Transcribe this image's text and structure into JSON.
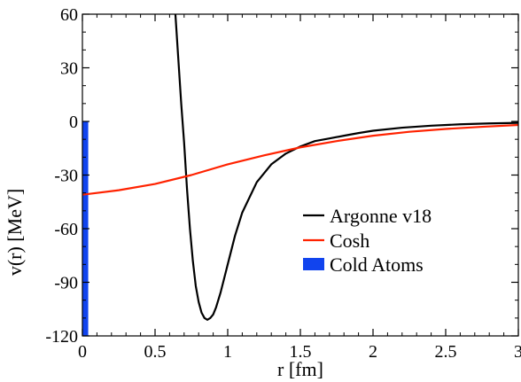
{
  "chart_data": {
    "type": "line",
    "xlabel": "r  [fm]",
    "ylabel": "v(r)  [MeV]",
    "xlim": [
      0,
      3
    ],
    "ylim": [
      -120,
      60
    ],
    "x_ticks": [
      0,
      0.5,
      1,
      1.5,
      2,
      2.5,
      3
    ],
    "x_tick_labels": [
      "0",
      "0.5",
      "1",
      "1.5",
      "2",
      "2.5",
      "3"
    ],
    "y_ticks": [
      -120,
      -90,
      -60,
      -30,
      0,
      30,
      60
    ],
    "y_tick_labels": [
      "-120",
      "-90",
      "-60",
      "-30",
      "0",
      "30",
      "60"
    ],
    "grid": false,
    "legend_position": "center-right",
    "series": [
      {
        "name": "Argonne v18",
        "color": "#000000",
        "x": [
          0.64,
          0.66,
          0.68,
          0.7,
          0.72,
          0.74,
          0.76,
          0.78,
          0.8,
          0.82,
          0.84,
          0.86,
          0.88,
          0.9,
          0.92,
          0.95,
          1.0,
          1.05,
          1.1,
          1.2,
          1.3,
          1.4,
          1.5,
          1.6,
          1.7,
          1.8,
          1.9,
          2.0,
          2.2,
          2.4,
          2.6,
          2.8,
          3.0
        ],
        "y": [
          60,
          35,
          10,
          -12,
          -38,
          -60,
          -78,
          -92,
          -101,
          -107,
          -110,
          -111,
          -110,
          -108,
          -104,
          -96,
          -80,
          -64,
          -51,
          -34,
          -24,
          -18,
          -14,
          -11,
          -9.5,
          -8,
          -6.5,
          -5.2,
          -3.5,
          -2.4,
          -1.6,
          -1.1,
          -0.8
        ]
      },
      {
        "name": "Cosh",
        "color": "#ff2200",
        "x": [
          0,
          0.25,
          0.5,
          0.75,
          1.0,
          1.25,
          1.5,
          1.75,
          2.0,
          2.25,
          2.5,
          2.75,
          3.0
        ],
        "y": [
          -41,
          -38.5,
          -35,
          -30,
          -24,
          -19,
          -14.5,
          -11,
          -8,
          -5.8,
          -4.2,
          -3,
          -2
        ]
      }
    ],
    "bars": [
      {
        "name": "Cold Atoms",
        "color": "#1144ee",
        "x_range": [
          0,
          0.04
        ],
        "y_range": [
          -120,
          0
        ]
      }
    ]
  }
}
